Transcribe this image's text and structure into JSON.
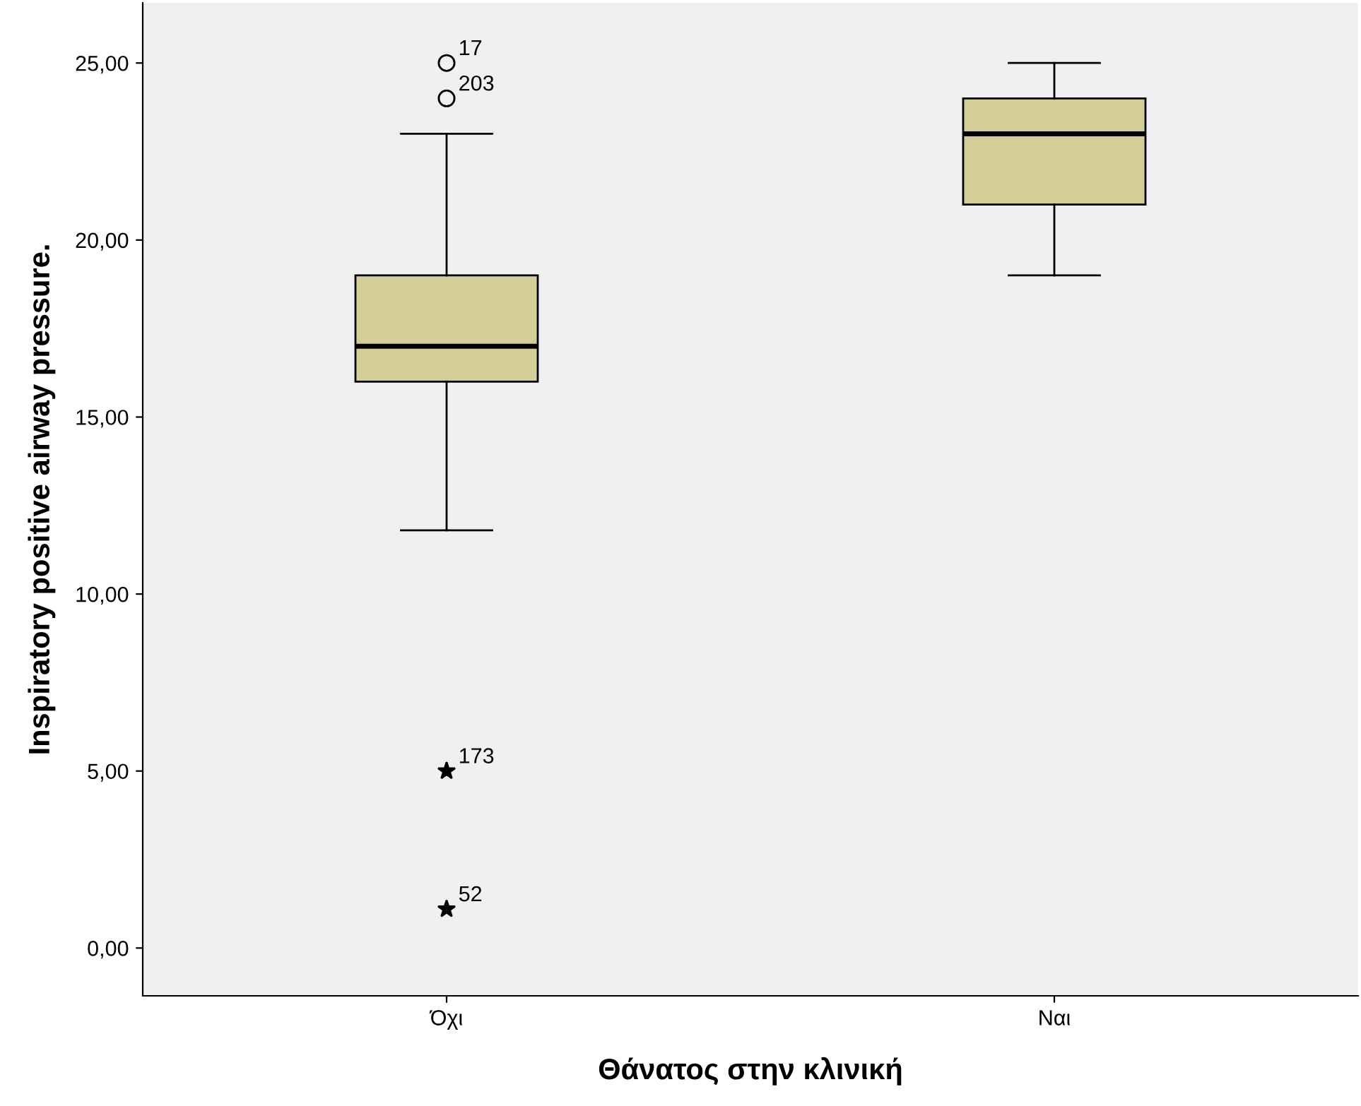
{
  "chart_data": {
    "type": "box",
    "xlabel": "Θάνατος στην κλινική",
    "ylabel": "Inspiratory positive airway pressure.",
    "categories": [
      "Όχι",
      "Ναι"
    ],
    "series": [
      {
        "color": "#d3ce98",
        "boxes": [
          {
            "low": 11.8,
            "q1": 16,
            "median": 17,
            "q3": 19,
            "high": 23,
            "outliers": [
              25,
              24,
              5,
              1.1
            ]
          },
          {
            "low": 19,
            "q1": 21,
            "median": 23,
            "q3": 24,
            "high": 25
          }
        ]
      }
    ],
    "ylim": [
      -1.35,
      26.7
    ],
    "yticks": [
      {
        "value": 0,
        "label": "0,00"
      },
      {
        "value": 5,
        "label": "5,00"
      },
      {
        "value": 10,
        "label": "10,00"
      },
      {
        "value": 15,
        "label": "15,00"
      },
      {
        "value": 20,
        "label": "20,00"
      },
      {
        "value": 25,
        "label": "25,00"
      }
    ],
    "grid": false,
    "annotations": [
      "17",
      "203",
      "173",
      "52"
    ]
  }
}
